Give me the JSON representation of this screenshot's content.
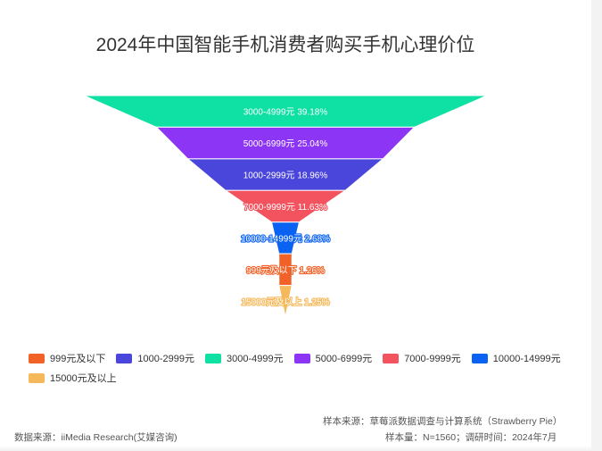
{
  "chart_data": {
    "type": "funnel",
    "title": "2024年中国智能手机消费者购买手机心理价位",
    "series": [
      {
        "name": "3000-4999元",
        "value": 39.18,
        "label": "3000-4999元 39.18%",
        "color": "#0fe0a3"
      },
      {
        "name": "5000-6999元",
        "value": 25.04,
        "label": "5000-6999元 25.04%",
        "color": "#8c35f5"
      },
      {
        "name": "1000-2999元",
        "value": 18.96,
        "label": "1000-2999元 18.96%",
        "color": "#4a46db"
      },
      {
        "name": "7000-9999元",
        "value": 11.63,
        "label": "7000-9999元 11.63%",
        "color": "#f2535e"
      },
      {
        "name": "10000-14999元",
        "value": 2.68,
        "label": "10000-14999元 2.68%",
        "color": "#0a62f2"
      },
      {
        "name": "999元及以下",
        "value": 1.26,
        "label": "999元及以下 1.26%",
        "color": "#f26228"
      },
      {
        "name": "15000元及以上",
        "value": 1.25,
        "label": "15000元及以上 1.25%",
        "color": "#f5b85a"
      }
    ],
    "legend": [
      {
        "name": "999元及以下",
        "color": "#f26228"
      },
      {
        "name": "1000-2999元",
        "color": "#4a46db"
      },
      {
        "name": "3000-4999元",
        "color": "#0fe0a3"
      },
      {
        "name": "5000-6999元",
        "color": "#8c35f5"
      },
      {
        "name": "7000-9999元",
        "color": "#f2535e"
      },
      {
        "name": "10000-14999元",
        "color": "#0a62f2"
      },
      {
        "name": "15000元及以上",
        "color": "#f5b85a"
      }
    ],
    "legend_position": "bottom-left"
  },
  "footer": {
    "source_note": "样本来源：草莓派数据调查与计算系统（Strawberry Pie）",
    "data_source": "数据来源：iiMedia Research(艾媒咨询)",
    "sample_info": "样本量：N=1560；调研时间：2024年7月"
  }
}
